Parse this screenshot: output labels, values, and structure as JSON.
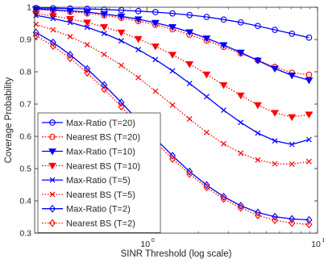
{
  "chart_data": {
    "type": "line",
    "title": "",
    "xlabel": "SINR Threshold (log scale)",
    "ylabel": "Coverage Probability",
    "xscale": "log",
    "xlim": [
      0.22,
      10
    ],
    "ylim": [
      0.3,
      1.0
    ],
    "xticks": [
      {
        "value": 1,
        "base": "10",
        "exp": "0"
      },
      {
        "value": 10,
        "base": "10",
        "exp": "1"
      }
    ],
    "yticks": [
      0.3,
      0.4,
      0.5,
      0.6,
      0.7,
      0.8,
      0.9,
      1
    ],
    "ytick_labels": [
      "0.3",
      "0.4",
      "0.5",
      "0.6",
      "0.7",
      "0.8",
      "0.9",
      "1"
    ],
    "grid": false,
    "legend_position": "lower-left",
    "x": [
      0.224,
      0.282,
      0.355,
      0.447,
      0.562,
      0.708,
      0.891,
      1.122,
      1.413,
      1.778,
      2.239,
      2.818,
      3.548,
      4.467,
      5.623,
      7.079,
      8.913
    ],
    "series": [
      {
        "name": "Max-Ratio (T=20)",
        "color": "#0000ff",
        "dash": "solid",
        "marker": "circle",
        "values": [
          0.998,
          0.997,
          0.996,
          0.995,
          0.993,
          0.991,
          0.988,
          0.985,
          0.981,
          0.976,
          0.97,
          0.962,
          0.953,
          0.942,
          0.93,
          0.918,
          0.906
        ]
      },
      {
        "name": "Nearest BS (T=20)",
        "color": "#ff0000",
        "dash": "dotted",
        "marker": "circle",
        "values": [
          0.993,
          0.99,
          0.986,
          0.981,
          0.975,
          0.967,
          0.957,
          0.946,
          0.932,
          0.915,
          0.897,
          0.877,
          0.857,
          0.836,
          0.815,
          0.797,
          0.791
        ]
      },
      {
        "name": "Max-Ratio (T=10)",
        "color": "#0000ff",
        "dash": "solid",
        "marker": "triangle-down",
        "values": [
          0.995,
          0.992,
          0.989,
          0.985,
          0.979,
          0.972,
          0.963,
          0.952,
          0.939,
          0.923,
          0.904,
          0.883,
          0.86,
          0.835,
          0.81,
          0.789,
          0.774
        ]
      },
      {
        "name": "Nearest BS (T=10)",
        "color": "#ff0000",
        "dash": "dotted",
        "marker": "triangle-down",
        "values": [
          0.98,
          0.973,
          0.964,
          0.953,
          0.939,
          0.922,
          0.902,
          0.879,
          0.853,
          0.824,
          0.792,
          0.759,
          0.727,
          0.697,
          0.673,
          0.66,
          0.668
        ]
      },
      {
        "name": "Max-Ratio (T=5)",
        "color": "#0000ff",
        "dash": "solid",
        "marker": "x",
        "values": [
          0.975,
          0.965,
          0.953,
          0.938,
          0.919,
          0.896,
          0.869,
          0.838,
          0.803,
          0.764,
          0.723,
          0.681,
          0.643,
          0.61,
          0.586,
          0.575,
          0.59
        ]
      },
      {
        "name": "Nearest BS (T=5)",
        "color": "#ff0000",
        "dash": "dotted",
        "marker": "x",
        "values": [
          0.947,
          0.93,
          0.909,
          0.884,
          0.854,
          0.82,
          0.782,
          0.74,
          0.697,
          0.654,
          0.612,
          0.577,
          0.548,
          0.527,
          0.515,
          0.514,
          0.522
        ]
      },
      {
        "name": "Max-Ratio (T=2)",
        "color": "#0000ff",
        "dash": "solid",
        "marker": "diamond",
        "values": [
          0.922,
          0.891,
          0.853,
          0.809,
          0.759,
          0.705,
          0.649,
          0.593,
          0.54,
          0.491,
          0.449,
          0.413,
          0.385,
          0.364,
          0.351,
          0.344,
          0.341
        ]
      },
      {
        "name": "Nearest BS (T=2)",
        "color": "#ff0000",
        "dash": "dotted",
        "marker": "diamond",
        "values": [
          0.912,
          0.88,
          0.842,
          0.797,
          0.746,
          0.692,
          0.637,
          0.582,
          0.53,
          0.483,
          0.442,
          0.406,
          0.378,
          0.355,
          0.34,
          0.331,
          0.327
        ]
      }
    ]
  }
}
